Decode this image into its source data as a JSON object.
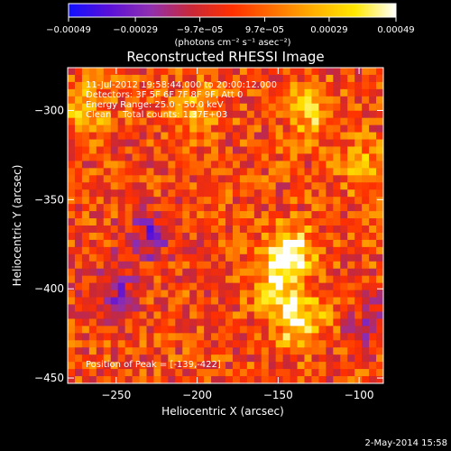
{
  "chart_data": {
    "type": "heatmap",
    "title": "Reconstructed RHESSI Image",
    "xlabel": "Heliocentric X (arcsec)",
    "ylabel": "Heliocentric Y (arcsec)",
    "xlim": [
      -280,
      -85
    ],
    "ylim": [
      -453,
      -276
    ],
    "x_ticks": [
      -250,
      -200,
      -150,
      -100
    ],
    "y_ticks": [
      -300,
      -350,
      -400,
      -450
    ],
    "x_tick_labels": [
      "−250",
      "−200",
      "−150",
      "−100"
    ],
    "y_tick_labels": [
      "−300",
      "−350",
      "−400",
      "−450"
    ],
    "colorbar": {
      "range": [
        -0.00049,
        0.00049
      ],
      "tick_values": [
        -0.00049,
        -0.00029,
        -9.7e-05,
        9.7e-05,
        0.00029,
        0.00049
      ],
      "tick_labels": [
        "−0.00049",
        "−0.00029",
        "−9.7e−05",
        "9.7e−05",
        "0.00029",
        "0.00049"
      ],
      "unit_label": "(photons cm⁻² s⁻¹ asec⁻²)",
      "colors": [
        "#1010ff",
        "#5a10d8",
        "#9030b0",
        "#c82838",
        "#ff3000",
        "#ff7000",
        "#ffb000",
        "#ffe800",
        "#ffffff"
      ]
    },
    "annotations": [
      "11-Jul-2012 19:58:44.000 to 20:00:12.000",
      "Detectors: 3F 5F 6F 7F 8F 9F, Att 0",
      "Energy Range: 25.0 - 50.0 keV",
      "Clean    Total counts: 1.37E+03"
    ],
    "peak_label": "Position of Peak = [-139,-422]",
    "peak": [
      -139,
      -422
    ],
    "bright_sources": [
      {
        "x": -143,
        "y": -380,
        "amplitude": 1.0
      },
      {
        "x": -137,
        "y": -418,
        "amplitude": 0.9
      },
      {
        "x": -152,
        "y": -398,
        "amplitude": 0.55
      },
      {
        "x": -130,
        "y": -300,
        "amplitude": 0.6
      },
      {
        "x": -270,
        "y": -297,
        "amplitude": 0.55
      },
      {
        "x": -200,
        "y": -300,
        "amplitude": 0.45
      },
      {
        "x": -100,
        "y": -330,
        "amplitude": 0.4
      }
    ],
    "negative_sources": [
      {
        "x": -230,
        "y": -370,
        "amplitude": -0.55
      },
      {
        "x": -250,
        "y": -400,
        "amplitude": -0.45
      },
      {
        "x": -95,
        "y": -420,
        "amplitude": -0.35
      }
    ]
  },
  "footer_date": "2-May-2014 15:58"
}
